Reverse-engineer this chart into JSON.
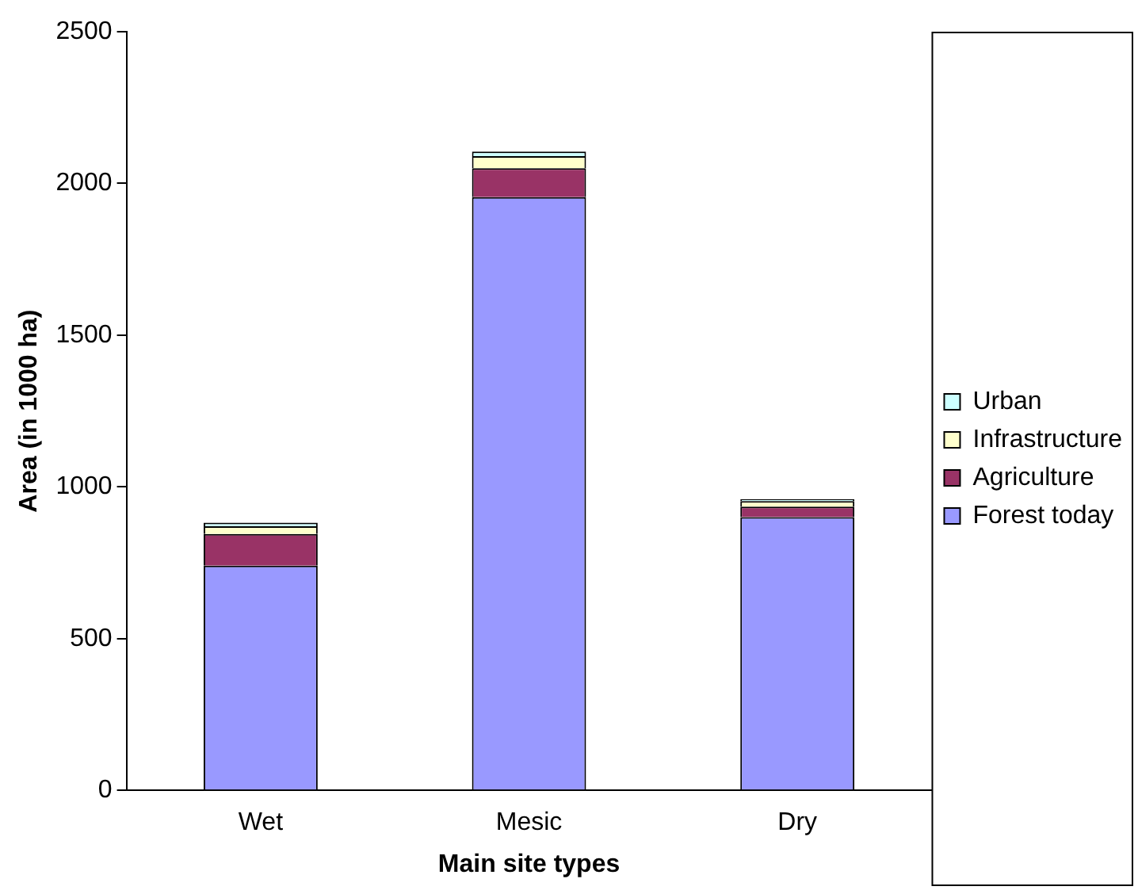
{
  "chart_data": {
    "type": "bar",
    "stacked": true,
    "xlabel": "Main site types",
    "ylabel": "Area (in 1000 ha)",
    "categories": [
      "Wet",
      "Mesic",
      "Dry"
    ],
    "series": [
      {
        "name": "Forest today",
        "color": "#9999ff",
        "values": [
          740,
          1955,
          900
        ]
      },
      {
        "name": "Agriculture",
        "color": "#993366",
        "values": [
          105,
          95,
          35
        ]
      },
      {
        "name": "Infrastructure",
        "color": "#ffffcc",
        "values": [
          25,
          40,
          18
        ]
      },
      {
        "name": "Urban",
        "color": "#ccffff",
        "values": [
          12,
          15,
          7
        ]
      }
    ],
    "ylim": [
      0,
      2500
    ],
    "yticks": [
      0,
      500,
      1000,
      1500,
      2000,
      2500
    ],
    "grid": false,
    "legend": "right"
  }
}
